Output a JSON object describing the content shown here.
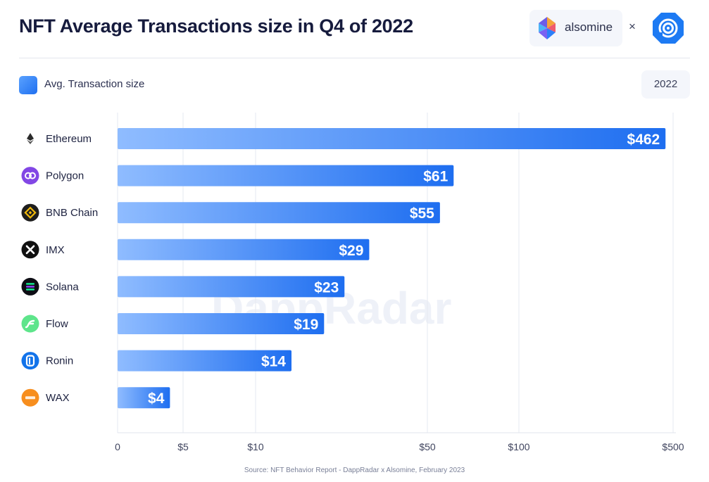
{
  "header": {
    "title": "NFT Average Transactions size in Q4 of 2022",
    "brand_name": "alsomine",
    "cross": "×"
  },
  "legend": {
    "label": "Avg. Transaction size"
  },
  "year_badge": "2022",
  "watermark": "DappRadar",
  "source": "Source: NFT Behavior Report - DappRadar x Alsomine, February 2023",
  "colors": {
    "bar_start": "#8fbcff",
    "bar_end": "#1e6ef0",
    "title": "#161b3d"
  },
  "chart_data": {
    "type": "bar",
    "orientation": "horizontal",
    "title": "NFT Average Transactions size in Q4 of 2022",
    "xscale": "log",
    "xlim": [
      0,
      500
    ],
    "categories": [
      "Ethereum",
      "Polygon",
      "BNB Chain",
      "IMX",
      "Solana",
      "Flow",
      "Ronin",
      "WAX"
    ],
    "values": [
      462,
      61,
      55,
      29,
      23,
      19,
      14,
      4
    ],
    "value_labels": [
      "$462",
      "$61",
      "$55",
      "$29",
      "$23",
      "$19",
      "$14",
      "$4"
    ],
    "icons": [
      "ethereum-icon",
      "polygon-icon",
      "bnb-chain-icon",
      "imx-icon",
      "solana-icon",
      "flow-icon",
      "ronin-icon",
      "wax-icon"
    ],
    "icon_colors": [
      "#ffffff",
      "#8247e5",
      "#1e1e1e",
      "#111111",
      "#0d0d14",
      "#5ee58b",
      "#1273ea",
      "#f78e1e"
    ],
    "ticks": [
      0,
      5,
      10,
      50,
      100,
      500
    ],
    "tick_labels": [
      "0",
      "$5",
      "$10",
      "$50",
      "$100",
      "$500"
    ],
    "legend": [
      "Avg. Transaction size"
    ],
    "grid": true
  }
}
